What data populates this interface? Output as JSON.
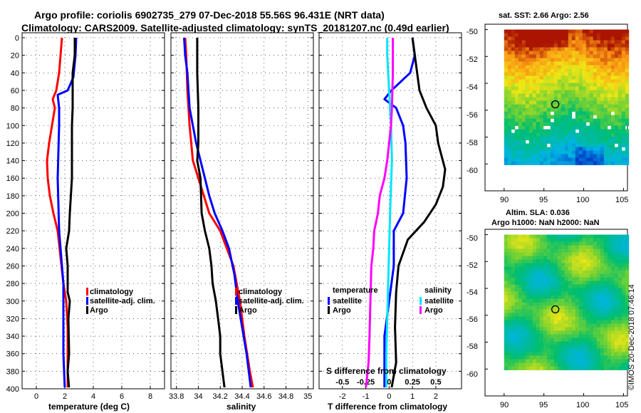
{
  "header": {
    "line1": "Argo profile: coriolis 6902735_279 07-Dec-2018 55.56S 96.431E (NRT data)",
    "line2": "Climatology: CARS2009. Satellite-adjusted climatology: synTS_20181207.nc (0.49d earlier)"
  },
  "colors": {
    "climatology": "#ff0000",
    "satellite": "#0000ff",
    "argo": "#000000",
    "salinity_sat": "#00e5ff",
    "salinity_clim": "#ff00ff"
  },
  "chart_data": [
    {
      "id": "temperature",
      "type": "line",
      "xlabel": "temperature (deg C)",
      "ylabel": "",
      "xlim": [
        -1,
        9
      ],
      "ylim": [
        400,
        0
      ],
      "xticks": [
        0,
        2,
        4,
        6,
        8
      ],
      "xtick_labels": [
        "0",
        "2",
        "4",
        "6",
        "8"
      ],
      "yticks": [
        0,
        20,
        40,
        60,
        80,
        100,
        120,
        140,
        160,
        180,
        200,
        220,
        240,
        260,
        280,
        300,
        320,
        340,
        360,
        380,
        400
      ],
      "legend": [
        "climatology",
        "satellite-adj. clim.",
        "Argo"
      ],
      "series": [
        {
          "name": "climatology",
          "color": "#ff0000",
          "points": [
            [
              1.8,
              0
            ],
            [
              1.7,
              20
            ],
            [
              1.6,
              40
            ],
            [
              1.4,
              60
            ],
            [
              1.15,
              70
            ],
            [
              1.3,
              80
            ],
            [
              1.1,
              100
            ],
            [
              0.9,
              120
            ],
            [
              0.75,
              140
            ],
            [
              0.8,
              160
            ],
            [
              0.95,
              180
            ],
            [
              1.2,
              200
            ],
            [
              1.5,
              220
            ],
            [
              1.7,
              250
            ],
            [
              1.9,
              280
            ],
            [
              2.1,
              300
            ],
            [
              2.2,
              330
            ],
            [
              2.2,
              370
            ],
            [
              2.2,
              400
            ]
          ]
        },
        {
          "name": "satellite-adj. clim.",
          "color": "#0000ff",
          "points": [
            [
              2.8,
              0
            ],
            [
              2.75,
              20
            ],
            [
              2.6,
              45
            ],
            [
              2.2,
              60
            ],
            [
              1.5,
              65
            ],
            [
              1.6,
              80
            ],
            [
              1.6,
              100
            ],
            [
              1.55,
              130
            ],
            [
              1.5,
              160
            ],
            [
              1.55,
              190
            ],
            [
              1.6,
              220
            ],
            [
              1.75,
              250
            ],
            [
              1.9,
              280
            ],
            [
              1.9,
              320
            ],
            [
              1.9,
              360
            ],
            [
              2.0,
              400
            ]
          ]
        },
        {
          "name": "Argo",
          "color": "#000000",
          "points": [
            [
              2.7,
              0
            ],
            [
              2.7,
              20
            ],
            [
              2.55,
              40
            ],
            [
              2.55,
              80
            ],
            [
              2.5,
              100
            ],
            [
              2.5,
              160
            ],
            [
              2.35,
              200
            ],
            [
              2.3,
              220
            ],
            [
              2.1,
              240
            ],
            [
              2.2,
              260
            ],
            [
              2.2,
              290
            ],
            [
              2.35,
              300
            ],
            [
              2.25,
              320
            ],
            [
              2.3,
              360
            ],
            [
              2.2,
              380
            ],
            [
              2.3,
              400
            ]
          ]
        }
      ]
    },
    {
      "id": "salinity",
      "type": "line",
      "xlabel": "salinity",
      "xlim": [
        33.75,
        35.05
      ],
      "ylim": [
        400,
        0
      ],
      "xticks": [
        33.8,
        34,
        34.2,
        34.4,
        34.6,
        34.8,
        35
      ],
      "xtick_labels": [
        "33.8",
        "34",
        "34.2",
        "34.4",
        "34.6",
        "34.8",
        "35"
      ],
      "legend": [
        "climatology",
        "satellite-adj. clim.",
        "Argo"
      ],
      "series": [
        {
          "name": "climatology",
          "color": "#ff0000",
          "points": [
            [
              33.88,
              0
            ],
            [
              33.89,
              20
            ],
            [
              33.9,
              60
            ],
            [
              33.92,
              100
            ],
            [
              33.95,
              140
            ],
            [
              34.0,
              160
            ],
            [
              34.05,
              180
            ],
            [
              34.1,
              200
            ],
            [
              34.2,
              220
            ],
            [
              34.26,
              240
            ],
            [
              34.32,
              260
            ],
            [
              34.35,
              280
            ],
            [
              34.38,
              300
            ],
            [
              34.42,
              340
            ],
            [
              34.47,
              380
            ],
            [
              34.5,
              400
            ]
          ]
        },
        {
          "name": "satellite-adj. clim.",
          "color": "#0000ff",
          "points": [
            [
              33.87,
              0
            ],
            [
              33.88,
              20
            ],
            [
              33.9,
              40
            ],
            [
              33.92,
              80
            ],
            [
              33.95,
              100
            ],
            [
              33.98,
              120
            ],
            [
              34.02,
              140
            ],
            [
              34.06,
              160
            ],
            [
              34.1,
              180
            ],
            [
              34.15,
              200
            ],
            [
              34.22,
              220
            ],
            [
              34.28,
              240
            ],
            [
              34.33,
              270
            ],
            [
              34.36,
              300
            ],
            [
              34.4,
              330
            ],
            [
              34.44,
              360
            ],
            [
              34.48,
              400
            ]
          ]
        },
        {
          "name": "Argo",
          "color": "#000000",
          "points": [
            [
              33.99,
              0
            ],
            [
              33.99,
              40
            ],
            [
              34.0,
              80
            ],
            [
              34.0,
              120
            ],
            [
              33.99,
              140
            ],
            [
              34.02,
              160
            ],
            [
              34.03,
              200
            ],
            [
              34.06,
              220
            ],
            [
              34.1,
              240
            ],
            [
              34.12,
              260
            ],
            [
              34.13,
              280
            ],
            [
              34.16,
              300
            ],
            [
              34.18,
              320
            ],
            [
              34.2,
              340
            ],
            [
              34.2,
              360
            ],
            [
              34.22,
              380
            ],
            [
              34.24,
              400
            ]
          ]
        }
      ]
    },
    {
      "id": "differences",
      "type": "line",
      "xlabel": "T difference from climatology",
      "top_label": "S difference from climatology",
      "xlim": [
        -3,
        3.1
      ],
      "ylim": [
        400,
        0
      ],
      "xticks": [
        -2,
        -1,
        0,
        1,
        2
      ],
      "xtick_labels": [
        "-2",
        "-1",
        "0",
        "1",
        "2"
      ],
      "s_ticks": [
        -0.5,
        -0.25,
        0,
        0.25,
        0.5
      ],
      "s_tick_labels": [
        "-0.5",
        "-0.25",
        "0",
        "0.25",
        "0.5"
      ],
      "s_to_t_scale": 4,
      "legend_temperature": {
        "title": "temperature",
        "items": [
          "satellite",
          "Argo"
        ]
      },
      "legend_salinity": {
        "title": "salinity",
        "items": [
          "satellite",
          "Argo"
        ]
      },
      "series": [
        {
          "name": "temperature satellite",
          "color": "#0000ff",
          "points": [
            [
              1.0,
              0
            ],
            [
              1.1,
              20
            ],
            [
              0.9,
              40
            ],
            [
              0.1,
              60
            ],
            [
              -0.2,
              70
            ],
            [
              0.3,
              80
            ],
            [
              0.6,
              100
            ],
            [
              0.7,
              120
            ],
            [
              0.75,
              160
            ],
            [
              0.6,
              200
            ],
            [
              0.2,
              220
            ],
            [
              0.2,
              260
            ],
            [
              0.0,
              300
            ],
            [
              -0.2,
              340
            ],
            [
              -0.2,
              400
            ]
          ]
        },
        {
          "name": "temperature Argo",
          "color": "#000000",
          "points": [
            [
              1.0,
              0
            ],
            [
              1.1,
              20
            ],
            [
              1.2,
              40
            ],
            [
              1.3,
              60
            ],
            [
              1.6,
              80
            ],
            [
              2.0,
              100
            ],
            [
              2.1,
              120
            ],
            [
              2.4,
              150
            ],
            [
              2.3,
              170
            ],
            [
              2.0,
              190
            ],
            [
              1.5,
              210
            ],
            [
              0.8,
              230
            ],
            [
              0.4,
              260
            ],
            [
              0.3,
              290
            ],
            [
              0.25,
              330
            ],
            [
              0.3,
              370
            ],
            [
              0.1,
              400
            ]
          ]
        },
        {
          "name": "salinity satellite",
          "color": "#00e5ff",
          "points": [
            [
              -0.02,
              0
            ],
            [
              -0.02,
              20
            ],
            [
              0.0,
              60
            ],
            [
              0.02,
              100
            ],
            [
              0.03,
              140
            ],
            [
              0.01,
              200
            ],
            [
              0.0,
              240
            ],
            [
              -0.01,
              280
            ],
            [
              -0.02,
              320
            ],
            [
              -0.03,
              360
            ],
            [
              -0.03,
              400
            ]
          ]
        },
        {
          "name": "salinity Argo",
          "color": "#ff00ff",
          "points": [
            [
              0.04,
              0
            ],
            [
              0.04,
              40
            ],
            [
              0.03,
              80
            ],
            [
              0.02,
              100
            ],
            [
              -0.02,
              140
            ],
            [
              -0.05,
              160
            ],
            [
              -0.1,
              180
            ],
            [
              -0.12,
              200
            ],
            [
              -0.16,
              220
            ],
            [
              -0.17,
              240
            ],
            [
              -0.19,
              260
            ],
            [
              -0.2,
              300
            ],
            [
              -0.21,
              340
            ],
            [
              -0.22,
              370
            ],
            [
              -0.25,
              400
            ]
          ]
        }
      ]
    }
  ],
  "sst_map": {
    "title": "sat. SST: 2.66 Argo: 2.56",
    "lon_ticks": [
      "90",
      "95",
      "100",
      "105"
    ],
    "lat_ticks": [
      "-50",
      "-52",
      "-54",
      "-56",
      "-58",
      "-60"
    ],
    "float_lon": 96.431,
    "float_lat": -55.56
  },
  "sla_map": {
    "title": "Altim. SLA: 0.036",
    "subtitle": "Argo h1000: NaN h2000: NaN",
    "lon_ticks": [
      "90",
      "95",
      "100",
      "105"
    ],
    "lat_ticks": [
      "-50",
      "-52",
      "-54",
      "-56",
      "-58",
      "-60"
    ],
    "float_lon": 96.431,
    "float_lat": -55.56
  },
  "credit": "©IMOS 20-Dec-2018 07:46:14"
}
